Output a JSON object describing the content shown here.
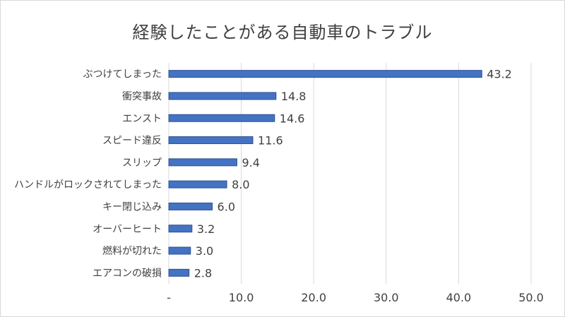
{
  "chart_data": {
    "type": "bar",
    "orientation": "horizontal",
    "title": "経験したことがある自動車のトラブル",
    "xlabel": "",
    "ylabel": "",
    "categories": [
      "ぶつけてしまった",
      "衝突事故",
      "エンスト",
      "スピード違反",
      "スリップ",
      "ハンドルがロックされてしまった",
      "キー閉じ込み",
      "オーバーヒート",
      "燃料が切れた",
      "エアコンの破損"
    ],
    "values": [
      43.2,
      14.8,
      14.6,
      11.6,
      9.4,
      8.0,
      6.0,
      3.2,
      3.0,
      2.8
    ],
    "value_labels": [
      "43.2",
      "14.8",
      "14.6",
      "11.6",
      "9.4",
      "8.0",
      "6.0",
      "3.2",
      "3.0",
      "2.8"
    ],
    "xlim": [
      0,
      50
    ],
    "ticks": [
      0,
      10,
      20,
      30,
      40,
      50
    ],
    "tick_labels": [
      "-",
      "10.0",
      "20.0",
      "30.0",
      "40.0",
      "50.0"
    ],
    "grid": "vertical",
    "legend": "none",
    "bar_color": "#4472c4",
    "bar_edge_color": "#2f528f",
    "grid_color": "#d9d9d9",
    "text_color": "#404040"
  }
}
